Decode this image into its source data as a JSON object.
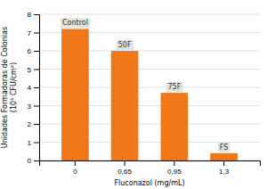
{
  "chart_data": {
    "type": "bar",
    "categories": [
      "0",
      "0,65",
      "0,95",
      "1,3"
    ],
    "values": [
      7.2,
      6.0,
      3.7,
      0.4
    ],
    "annotations": [
      "Control",
      "50F",
      "75F",
      "FS"
    ],
    "color": "#F07818",
    "xlabel": "Fluconazol (mg/mL)",
    "ylabel": "Unidades Formadoras de Colonias\n(10⁵ CFU/cm²)",
    "ylim": [
      0,
      8
    ],
    "yticks": [
      0,
      1,
      2,
      3,
      4,
      5,
      6,
      7,
      8
    ],
    "grid": true
  }
}
